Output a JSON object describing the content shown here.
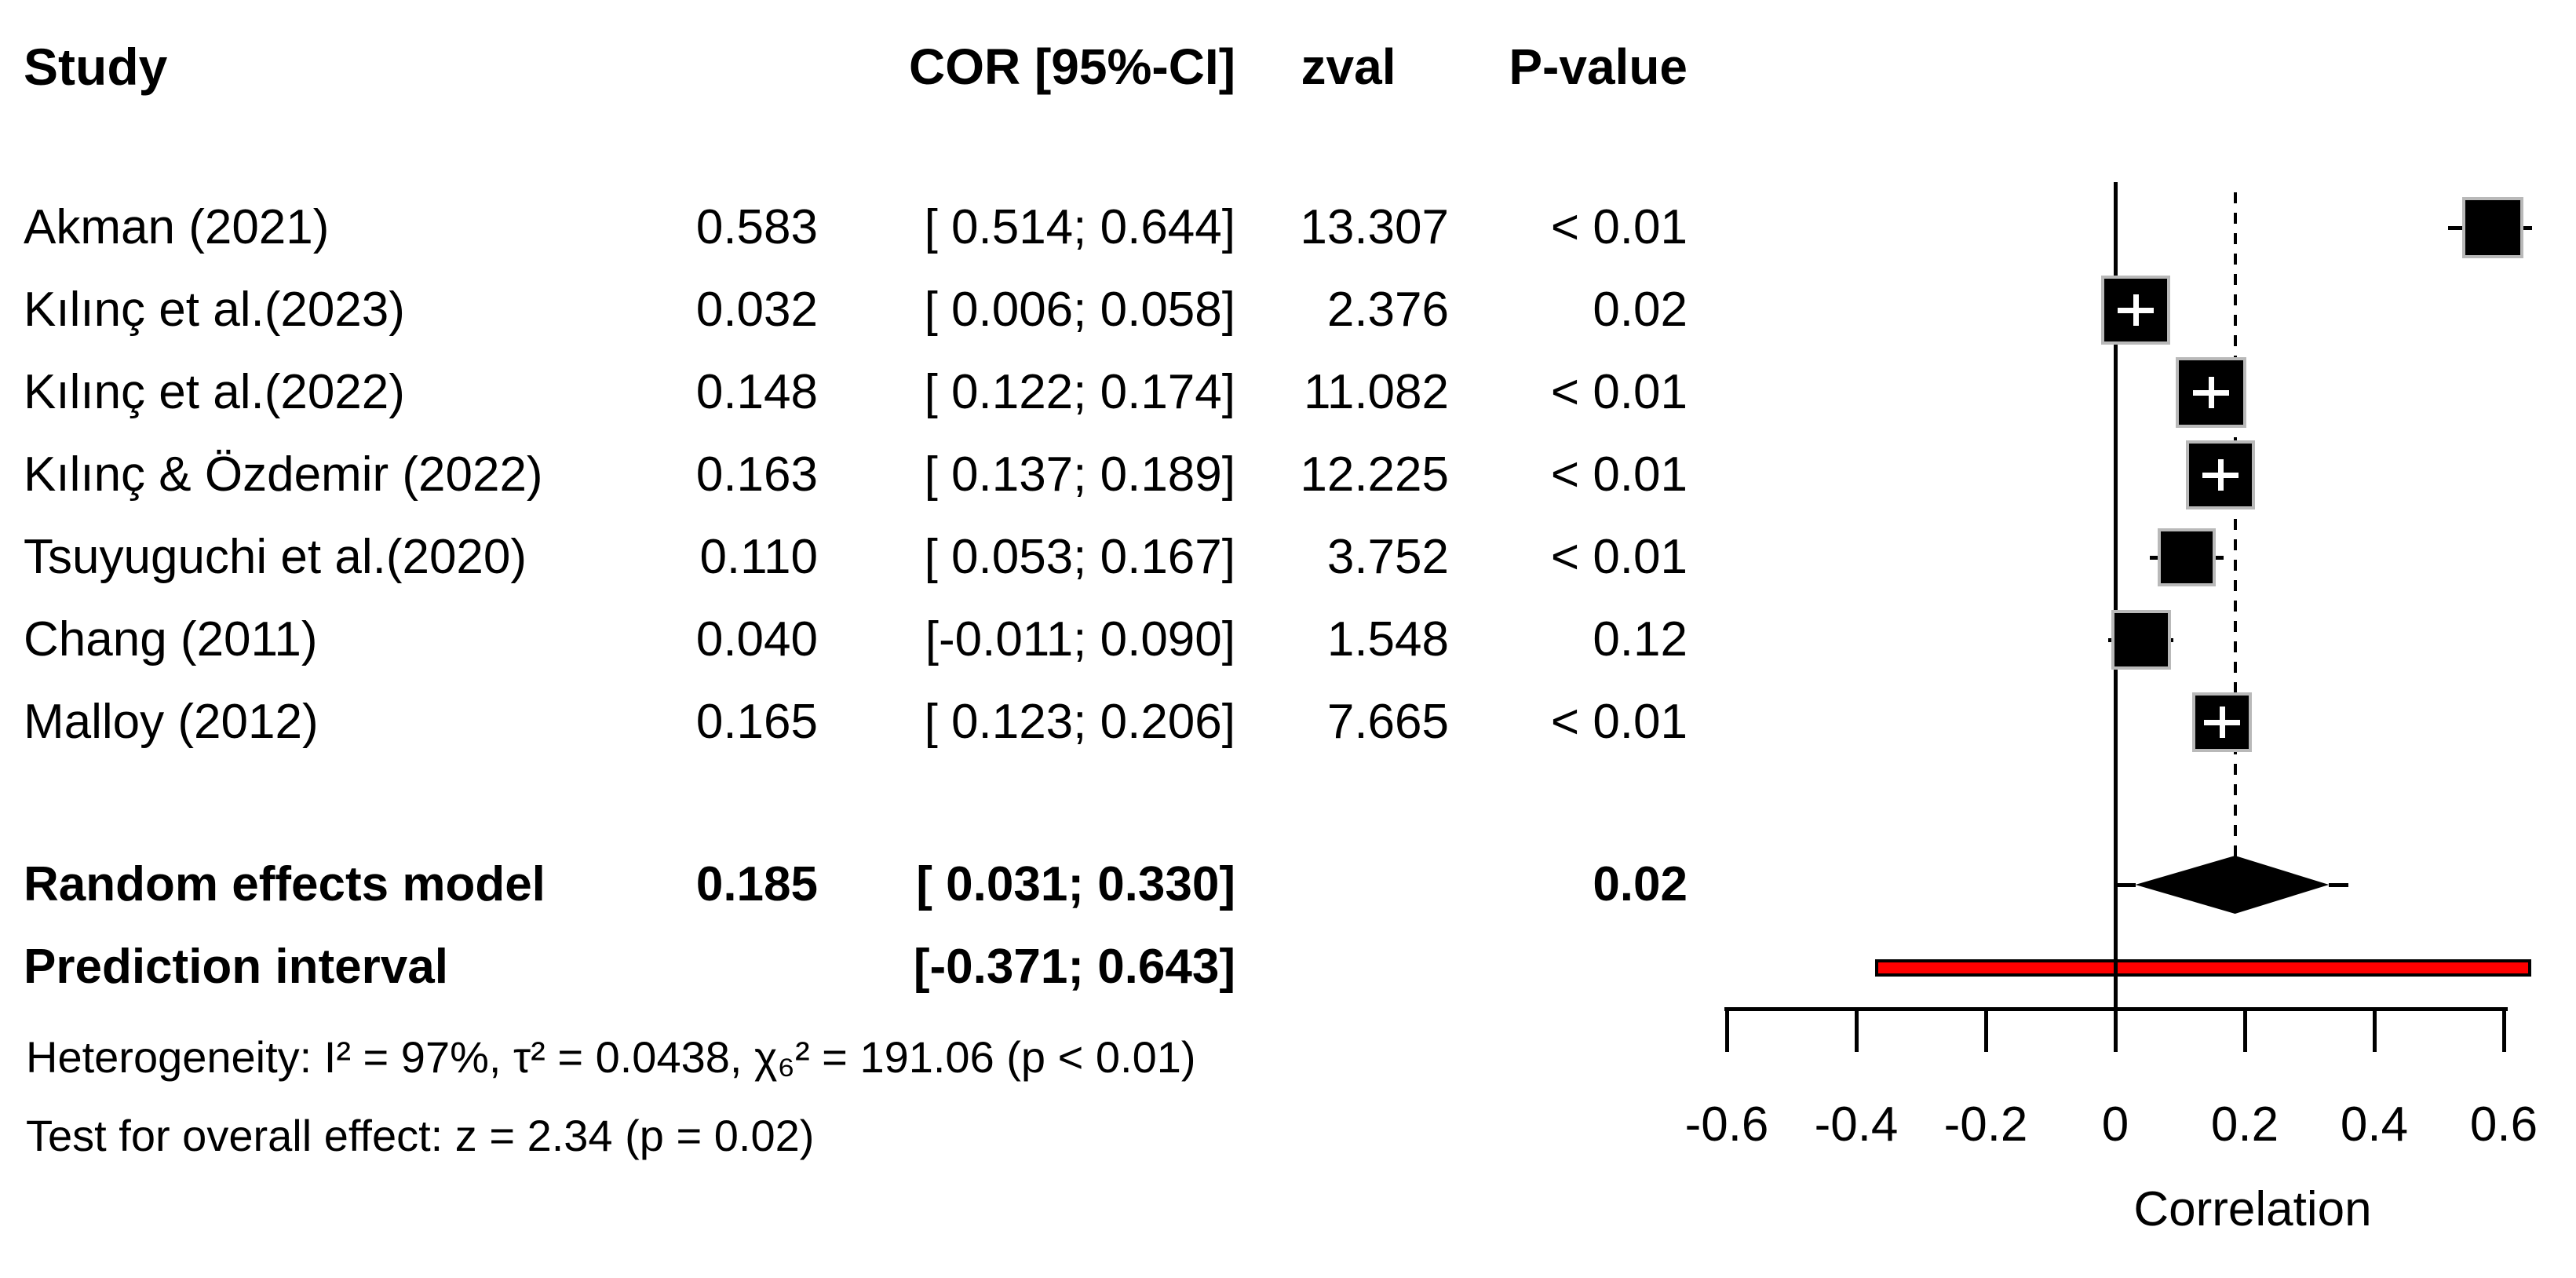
{
  "header": {
    "study": "Study",
    "cor_ci": "COR [95%-CI]",
    "zval": "zval",
    "pvalue": "P-value"
  },
  "stats": {
    "heterogeneity": "Heterogeneity: I² = 97%, τ² = 0.0438, χ₆² = 191.06 (p < 0.01)",
    "overall_effect": "Test for overall effect: z = 2.34 (p = 0.02)"
  },
  "colors": {
    "marker": "#000000",
    "marker_border": "#b9b9b9",
    "prediction_bar": "#ff0000",
    "text": "#000000"
  },
  "chart_data": {
    "type": "forest",
    "x_axis": {
      "label": "Correlation",
      "tick_values": [
        -0.6,
        -0.4,
        -0.2,
        0,
        0.2,
        0.4,
        0.6
      ],
      "range": [
        -0.6,
        0.6
      ],
      "grid": false
    },
    "zero_line_x": 0,
    "overall_dashed_line_x": 0.185,
    "studies": [
      {
        "name": "Akman (2021)",
        "cor": 0.583,
        "ci_low": 0.514,
        "ci_high": 0.644,
        "zval": 13.307,
        "p": "< 0.01"
      },
      {
        "name": "Kılınç et al.(2023)",
        "cor": 0.032,
        "ci_low": 0.006,
        "ci_high": 0.058,
        "zval": 2.376,
        "p": "0.02"
      },
      {
        "name": "Kılınç et al.(2022)",
        "cor": 0.148,
        "ci_low": 0.122,
        "ci_high": 0.174,
        "zval": 11.082,
        "p": "< 0.01"
      },
      {
        "name": "Kılınç & Özdemir (2022)",
        "cor": 0.163,
        "ci_low": 0.137,
        "ci_high": 0.189,
        "zval": 12.225,
        "p": "< 0.01"
      },
      {
        "name": "Tsuyuguchi et al.(2020)",
        "cor": 0.11,
        "ci_low": 0.053,
        "ci_high": 0.167,
        "zval": 3.752,
        "p": "< 0.01"
      },
      {
        "name": "Chang (2011)",
        "cor": 0.04,
        "ci_low": -0.011,
        "ci_high": 0.09,
        "zval": 1.548,
        "p": "0.12"
      },
      {
        "name": "Malloy (2012)",
        "cor": 0.165,
        "ci_low": 0.123,
        "ci_high": 0.206,
        "zval": 7.665,
        "p": "< 0.01"
      }
    ],
    "random_effects": {
      "label": "Random effects model",
      "cor": 0.185,
      "ci_low": 0.031,
      "ci_high": 0.33,
      "p": "0.02"
    },
    "prediction_interval": {
      "label": "Prediction interval",
      "ci_low": -0.371,
      "ci_high": 0.643
    },
    "marker_sizes_px": [
      78,
      88,
      90,
      88,
      74,
      76,
      76
    ],
    "legend": "none"
  }
}
